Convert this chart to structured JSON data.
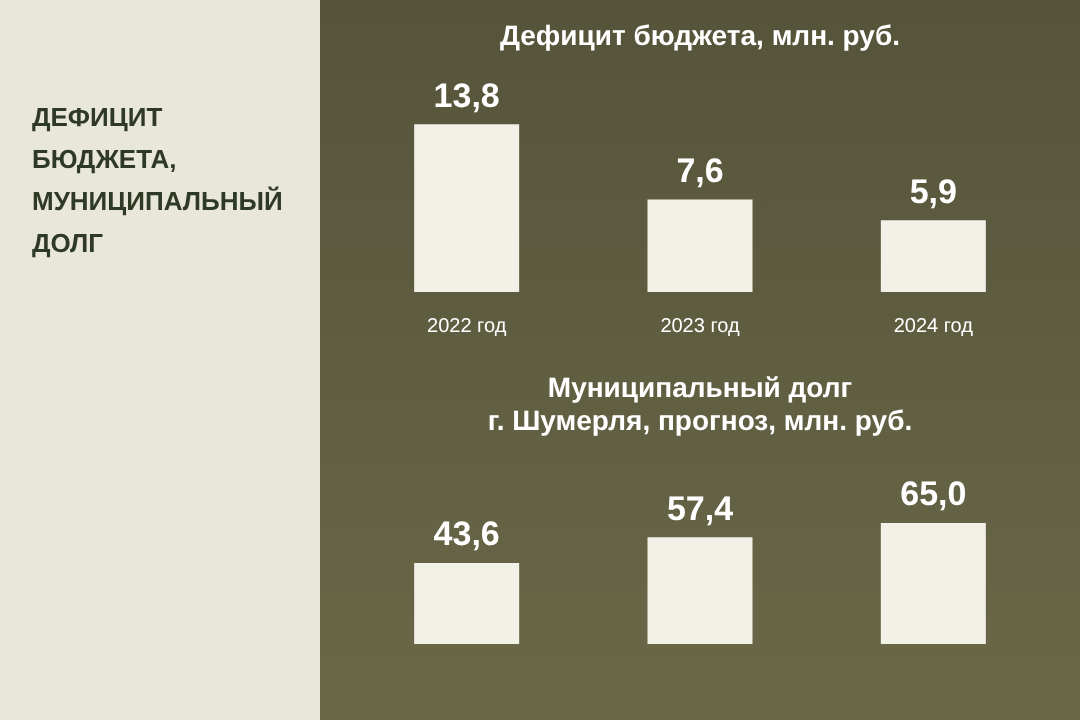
{
  "chart_data": [
    {
      "type": "other",
      "title": "ДЕФИЦИТ БЮДЖЕТА, МУНИЦИПАЛЬНЫЙ ДОЛГ"
    },
    {
      "type": "bar",
      "title": "Дефицит бюджета, млн. руб.",
      "categories": [
        "2022 год",
        "2023 год",
        "2024 год"
      ],
      "values": [
        13.8,
        7.6,
        5.9
      ],
      "value_labels": [
        "13,8",
        "7,6",
        "5,9"
      ],
      "color": "#f2f1e8"
    },
    {
      "type": "bar",
      "title": "Муниципальный долг\nг. Шумерля, прогноз, млн. руб.",
      "categories": [
        null,
        null,
        null
      ],
      "values": [
        43.6,
        57.4,
        65.0
      ],
      "value_labels": [
        "43,6",
        "57,4",
        "65,0"
      ],
      "color": "#f2f1e8"
    }
  ]
}
